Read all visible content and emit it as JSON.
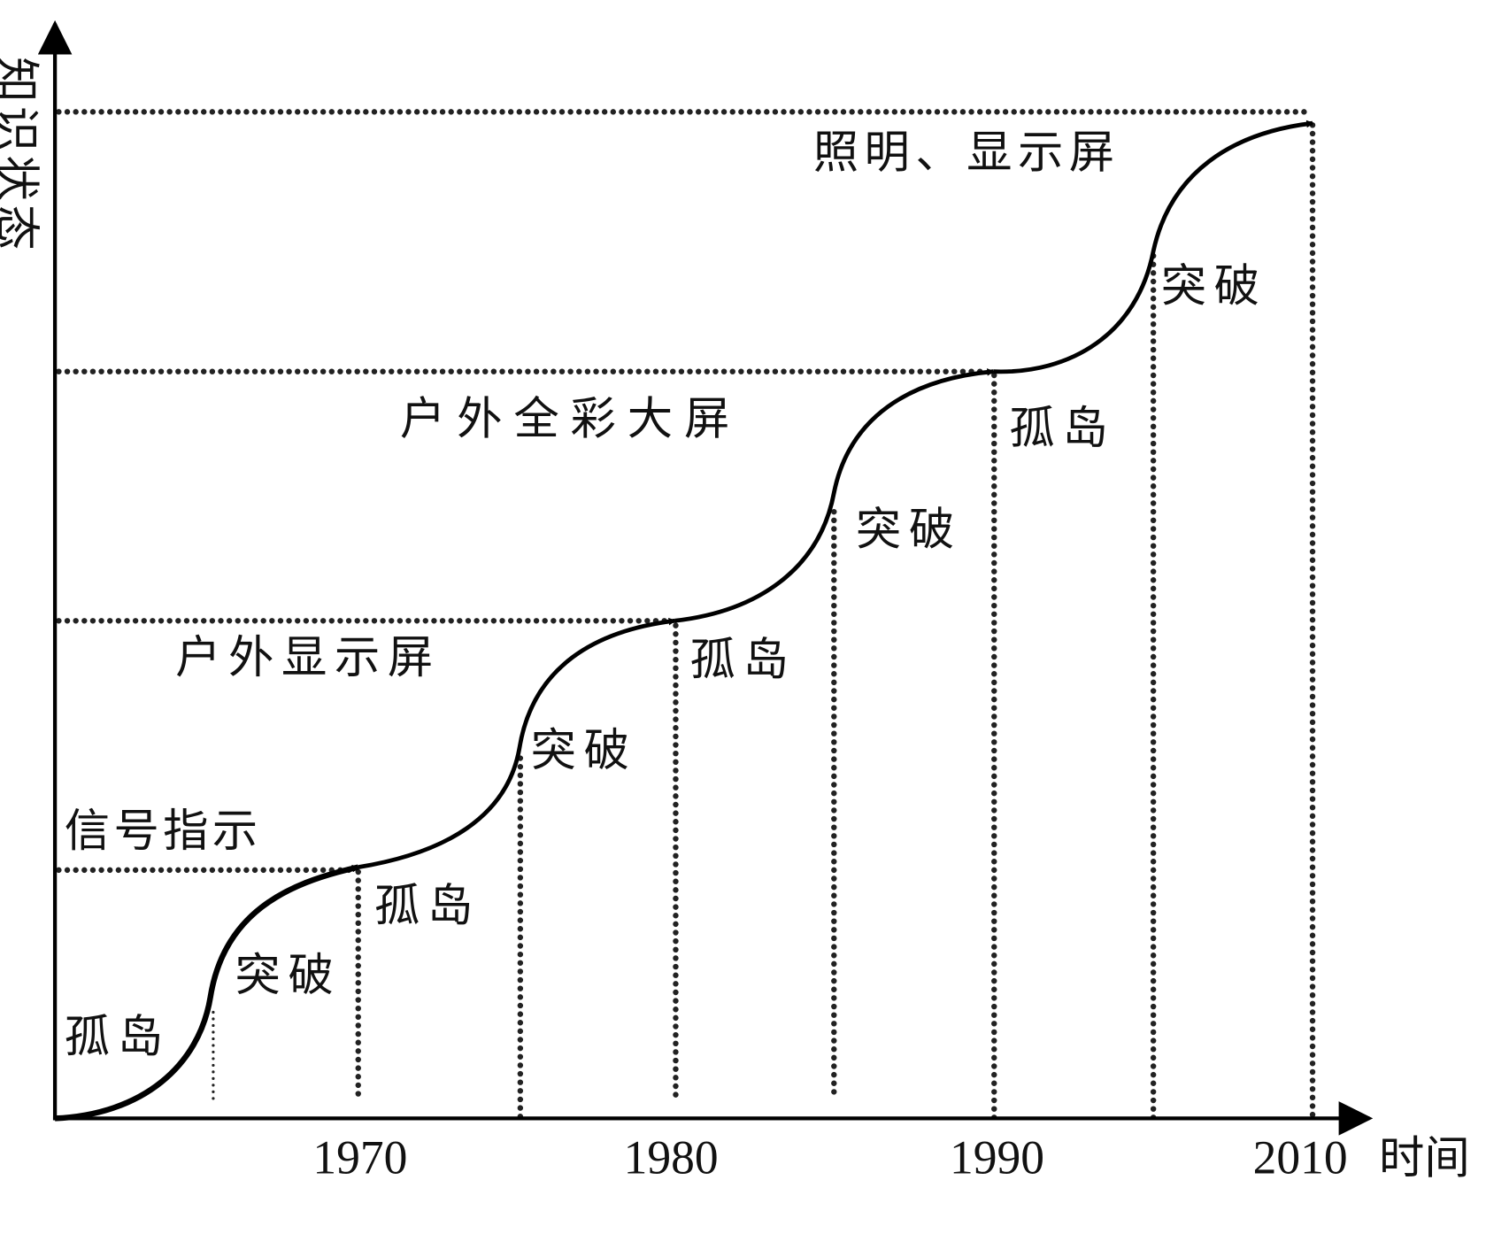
{
  "axes": {
    "y_label": "知识状态",
    "x_label": "时间"
  },
  "years": [
    "1970",
    "1980",
    "1990",
    "2010"
  ],
  "levels": [
    "信号指示",
    "户外显示屏",
    "户外全彩大屏",
    "照明、显示屏"
  ],
  "stages": [
    "孤岛",
    "突破",
    "孤岛",
    "突破",
    "孤岛",
    "突破",
    "孤岛",
    "突破"
  ]
}
